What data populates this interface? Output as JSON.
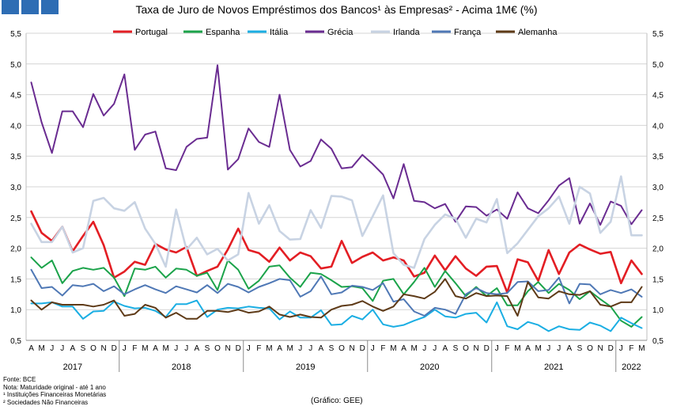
{
  "header": {
    "logo_color": "#2E6DB4",
    "title": "Taxa de Juro de Novos Empréstimos dos Bancos¹ às Empresas² - Acima 1M€ (%)"
  },
  "footer": {
    "source": "Fonte: BCE",
    "note": "Nota: Maturidade original - até 1 ano",
    "note1": "¹ Instituições Financeiras Monetárias",
    "note2": "² Sociedades Não Financeiras",
    "credit": "(Gráfico: GEE)"
  },
  "chart_data": {
    "type": "line",
    "title": "Taxa de Juro de Novos Empréstimos dos Bancos¹ às Empresas² - Acima 1M€ (%)",
    "ylim": [
      0.5,
      5.5
    ],
    "yticks": [
      "0,5",
      "1,0",
      "1,5",
      "2,0",
      "2,5",
      "3,0",
      "3,5",
      "4,0",
      "4,5",
      "5,0",
      "5,5"
    ],
    "grid": true,
    "legend_position": "top",
    "months": [
      "A",
      "M",
      "J",
      "J",
      "A",
      "S",
      "O",
      "N",
      "D",
      "J",
      "F",
      "M",
      "A",
      "M",
      "J",
      "J",
      "A",
      "S",
      "O",
      "N",
      "D",
      "J",
      "F",
      "M",
      "A",
      "M",
      "J",
      "J",
      "A",
      "S",
      "O",
      "N",
      "D",
      "J",
      "F",
      "M",
      "A",
      "M",
      "J",
      "J",
      "A",
      "S",
      "O",
      "N",
      "D",
      "J",
      "F",
      "M",
      "A",
      "M",
      "J",
      "J",
      "A",
      "S",
      "O",
      "N",
      "D",
      "J",
      "F",
      "M"
    ],
    "years": [
      {
        "label": "2017",
        "start": 0,
        "end": 8
      },
      {
        "label": "2018",
        "start": 9,
        "end": 20
      },
      {
        "label": "2019",
        "start": 21,
        "end": 32
      },
      {
        "label": "2020",
        "start": 33,
        "end": 44
      },
      {
        "label": "2021",
        "start": 45,
        "end": 56
      },
      {
        "label": "2022",
        "start": 57,
        "end": 59
      }
    ],
    "series": [
      {
        "name": "Portugal",
        "color": "#E31E24",
        "width": 2.6,
        "values": [
          2.6,
          2.25,
          2.12,
          2.35,
          1.95,
          2.2,
          2.43,
          2.05,
          1.52,
          1.62,
          1.78,
          1.73,
          2.07,
          1.98,
          1.93,
          2.02,
          1.55,
          1.63,
          1.7,
          1.98,
          2.32,
          1.97,
          1.92,
          1.78,
          2.01,
          1.8,
          1.93,
          1.87,
          1.67,
          1.7,
          2.12,
          1.76,
          1.86,
          1.93,
          1.8,
          1.85,
          1.8,
          1.54,
          1.6,
          1.88,
          1.64,
          1.87,
          1.67,
          1.55,
          1.7,
          1.71,
          1.28,
          1.82,
          1.77,
          1.47,
          1.97,
          1.58,
          1.93,
          2.06,
          1.98,
          1.91,
          1.94,
          1.43,
          1.8,
          1.58
        ]
      },
      {
        "name": "Espanha",
        "color": "#1BA34A",
        "width": 2.0,
        "values": [
          1.85,
          1.68,
          1.8,
          1.43,
          1.63,
          1.68,
          1.65,
          1.68,
          1.52,
          1.22,
          1.67,
          1.65,
          1.7,
          1.52,
          1.67,
          1.65,
          1.55,
          1.6,
          1.32,
          1.8,
          1.65,
          1.34,
          1.47,
          1.7,
          1.72,
          1.52,
          1.37,
          1.6,
          1.58,
          1.48,
          1.37,
          1.38,
          1.35,
          1.14,
          1.47,
          1.5,
          1.25,
          1.45,
          1.68,
          1.37,
          1.63,
          1.43,
          1.22,
          1.37,
          1.22,
          1.35,
          1.07,
          1.07,
          1.3,
          1.45,
          1.27,
          1.42,
          1.32,
          1.17,
          1.3,
          1.17,
          1.05,
          0.82,
          0.72,
          0.88
        ]
      },
      {
        "name": "Itália",
        "color": "#1BAEE3",
        "width": 2.0,
        "values": [
          1.1,
          1.1,
          1.12,
          1.05,
          1.05,
          0.85,
          0.97,
          0.98,
          1.13,
          1.06,
          1.02,
          1.03,
          0.98,
          0.88,
          1.09,
          1.09,
          1.15,
          0.88,
          1.0,
          1.03,
          1.02,
          1.05,
          1.03,
          1.02,
          0.84,
          0.97,
          0.87,
          0.87,
          0.99,
          0.75,
          0.76,
          0.9,
          0.84,
          1.0,
          0.76,
          0.72,
          0.75,
          0.82,
          0.88,
          1.0,
          0.89,
          0.87,
          0.93,
          0.95,
          0.79,
          1.12,
          0.73,
          0.68,
          0.8,
          0.75,
          0.65,
          0.73,
          0.68,
          0.67,
          0.79,
          0.74,
          0.65,
          0.87,
          0.78,
          0.7
        ]
      },
      {
        "name": "Grécia",
        "color": "#6A2C91",
        "width": 2.0,
        "values": [
          4.7,
          4.05,
          3.55,
          4.23,
          4.23,
          3.97,
          4.51,
          4.16,
          4.35,
          4.83,
          3.6,
          3.85,
          3.9,
          3.3,
          3.27,
          3.65,
          3.78,
          3.8,
          4.98,
          3.28,
          3.45,
          3.95,
          3.73,
          3.65,
          4.5,
          3.6,
          3.33,
          3.42,
          3.77,
          3.62,
          3.3,
          3.32,
          3.52,
          3.37,
          3.2,
          2.81,
          3.37,
          2.77,
          2.75,
          2.65,
          2.72,
          2.43,
          2.68,
          2.67,
          2.53,
          2.63,
          2.48,
          2.91,
          2.65,
          2.57,
          2.78,
          3.02,
          3.14,
          2.4,
          2.73,
          2.38,
          2.76,
          2.69,
          2.39,
          2.62
        ]
      },
      {
        "name": "Irlanda",
        "color": "#C8D3E3",
        "width": 2.6,
        "values": [
          2.4,
          2.1,
          2.1,
          2.35,
          1.93,
          2.0,
          2.77,
          2.82,
          2.65,
          2.61,
          2.75,
          2.32,
          2.07,
          1.7,
          2.63,
          1.98,
          2.17,
          1.9,
          1.99,
          1.8,
          1.9,
          2.9,
          2.4,
          2.7,
          2.28,
          2.14,
          2.15,
          2.62,
          2.33,
          2.85,
          2.84,
          2.78,
          2.2,
          2.52,
          2.86,
          1.92,
          1.73,
          1.68,
          2.15,
          2.38,
          2.55,
          2.48,
          2.17,
          2.48,
          2.42,
          2.8,
          1.92,
          2.08,
          2.3,
          2.52,
          2.65,
          2.84,
          2.4,
          3.0,
          2.89,
          2.25,
          2.43,
          3.17,
          2.21,
          2.21
        ]
      },
      {
        "name": "França",
        "color": "#4F78B5",
        "width": 2.0,
        "values": [
          1.65,
          1.35,
          1.37,
          1.23,
          1.4,
          1.38,
          1.42,
          1.3,
          1.38,
          1.25,
          1.33,
          1.4,
          1.33,
          1.27,
          1.38,
          1.33,
          1.28,
          1.4,
          1.27,
          1.42,
          1.37,
          1.28,
          1.37,
          1.43,
          1.5,
          1.48,
          1.21,
          1.3,
          1.54,
          1.25,
          1.28,
          1.39,
          1.37,
          1.32,
          1.43,
          1.13,
          1.17,
          0.97,
          0.9,
          1.03,
          1.0,
          0.93,
          1.25,
          1.35,
          1.27,
          1.25,
          1.27,
          1.45,
          1.46,
          1.3,
          1.32,
          1.52,
          1.1,
          1.42,
          1.41,
          1.25,
          1.32,
          1.27,
          1.33,
          1.21
        ]
      },
      {
        "name": "Alemanha",
        "color": "#5E3A17",
        "width": 2.0,
        "values": [
          1.15,
          1.0,
          1.12,
          1.08,
          1.08,
          1.08,
          1.05,
          1.08,
          1.15,
          0.9,
          0.93,
          1.08,
          1.03,
          0.87,
          0.95,
          0.85,
          0.85,
          0.98,
          0.98,
          0.96,
          1.0,
          0.95,
          0.97,
          1.05,
          0.92,
          0.88,
          0.92,
          0.88,
          0.87,
          1.0,
          1.06,
          1.08,
          1.14,
          1.05,
          0.98,
          1.05,
          1.25,
          1.22,
          1.18,
          1.29,
          1.5,
          1.22,
          1.18,
          1.27,
          1.22,
          1.23,
          1.22,
          0.9,
          1.45,
          1.2,
          1.18,
          1.3,
          1.25,
          1.24,
          1.3,
          1.08,
          1.05,
          1.12,
          1.12,
          1.37
        ]
      }
    ]
  }
}
